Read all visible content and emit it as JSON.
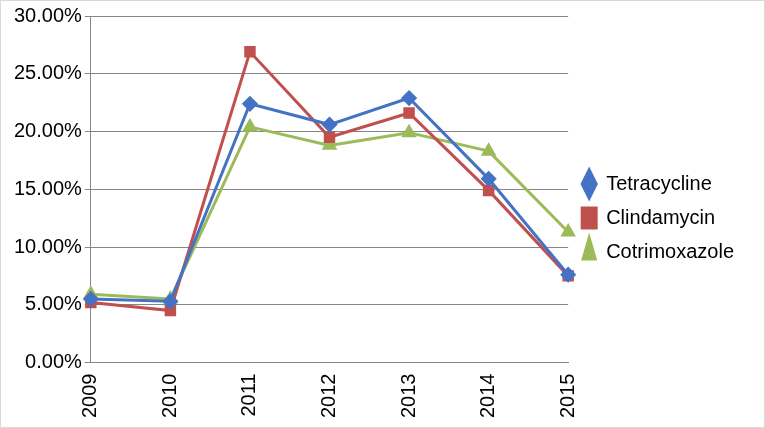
{
  "chart_data": {
    "type": "line",
    "categories": [
      "2009",
      "2010",
      "2011",
      "2012",
      "2013",
      "2014",
      "2015"
    ],
    "series": [
      {
        "name": "Tetracycline",
        "color": "#4472c4",
        "marker": "diamond",
        "line_style": "solid",
        "values": [
          5.5,
          5.3,
          22.4,
          20.6,
          22.9,
          15.9,
          7.6
        ]
      },
      {
        "name": "Clindamycin",
        "color": "#c0504d",
        "marker": "square",
        "line_style": "solid",
        "values": [
          5.2,
          4.5,
          26.9,
          19.5,
          21.6,
          14.9,
          7.5
        ]
      },
      {
        "name": "Cotrimoxazole",
        "color": "#9bbb59",
        "marker": "triangle",
        "line_style": "solid",
        "values": [
          5.9,
          5.5,
          20.4,
          18.8,
          19.9,
          18.3,
          11.3
        ]
      }
    ],
    "ylim": [
      0,
      30
    ],
    "yticks": [
      {
        "value": 0,
        "label": "0.00%"
      },
      {
        "value": 5,
        "label": "5.00%"
      },
      {
        "value": 10,
        "label": "10.00%"
      },
      {
        "value": 15,
        "label": "15.00%"
      },
      {
        "value": 20,
        "label": "20.00%"
      },
      {
        "value": 25,
        "label": "25.00%"
      },
      {
        "value": 30,
        "label": "30.00%"
      }
    ],
    "grid": true,
    "legend": "right"
  }
}
